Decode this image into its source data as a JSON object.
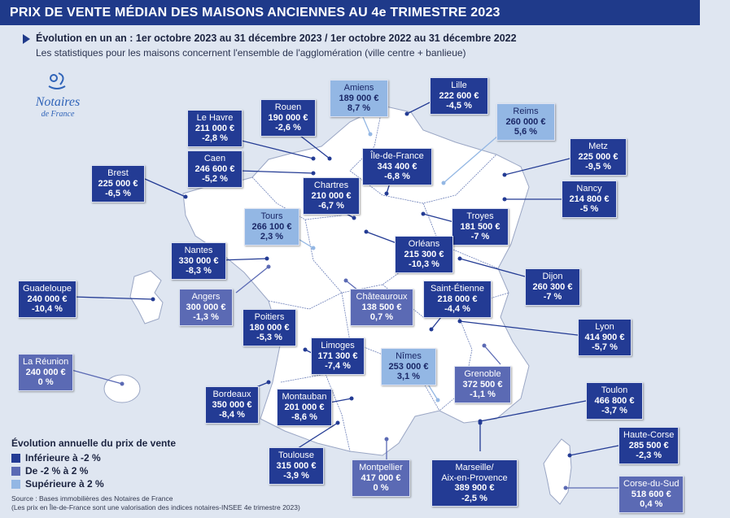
{
  "title": "PRIX DE VENTE MÉDIAN DES MAISONS ANCIENNES AU 4e TRIMESTRE 2023",
  "subtitle": "Évolution en un an : 1er octobre 2023 au 31 décembre 2023 / 1er octobre 2022 au 31 décembre 2022",
  "subtitle2": "Les statistiques pour les maisons concernent l'ensemble de l'agglomération (ville centre + banlieue)",
  "logo": {
    "line1": "Notaires",
    "line2": "de France"
  },
  "legend": {
    "title": "Évolution annuelle du prix de vente",
    "items": [
      {
        "label": "Inférieure à -2 %",
        "color": "#233b94"
      },
      {
        "label": "De -2 % à 2 %",
        "color": "#5b6ab4"
      },
      {
        "label": "Supérieure à 2 %",
        "color": "#93b7e4"
      }
    ]
  },
  "source": {
    "line1": "Source : Bases immobilières des Notaires de France",
    "line2": "(Les prix en Île-de-France sont une valorisation des indices notaires-INSEE 4e trimestre 2023)"
  },
  "cities": [
    {
      "name": "Amiens",
      "price": "189 000 €",
      "change": "8,7 %",
      "level": "light"
    },
    {
      "name": "Lille",
      "price": "222 600 €",
      "change": "-4,5 %",
      "level": "dark"
    },
    {
      "name": "Reims",
      "price": "260 000 €",
      "change": "5,6 %",
      "level": "light"
    },
    {
      "name": "Le Havre",
      "price": "211 000 €",
      "change": "-2,8 %",
      "level": "dark"
    },
    {
      "name": "Rouen",
      "price": "190 000 €",
      "change": "-2,6 %",
      "level": "dark"
    },
    {
      "name": "Caen",
      "price": "246 600 €",
      "change": "-5,2 %",
      "level": "dark"
    },
    {
      "name": "Île-de-France",
      "price": "343 400 €",
      "change": "-6,8 %",
      "level": "dark"
    },
    {
      "name": "Metz",
      "price": "225 000 €",
      "change": "-9,5 %",
      "level": "dark"
    },
    {
      "name": "Brest",
      "price": "225 000 €",
      "change": "-6,5 %",
      "level": "dark"
    },
    {
      "name": "Chartres",
      "price": "210 000 €",
      "change": "-6,7 %",
      "level": "dark"
    },
    {
      "name": "Nancy",
      "price": "214 800 €",
      "change": "-5 %",
      "level": "dark"
    },
    {
      "name": "Tours",
      "price": "266 100 €",
      "change": "2,3 %",
      "level": "light"
    },
    {
      "name": "Troyes",
      "price": "181 500 €",
      "change": "-7 %",
      "level": "dark"
    },
    {
      "name": "Orléans",
      "price": "215 300 €",
      "change": "-10,3 %",
      "level": "dark"
    },
    {
      "name": "Nantes",
      "price": "330 000 €",
      "change": "-8,3 %",
      "level": "dark"
    },
    {
      "name": "Dijon",
      "price": "260 300 €",
      "change": "-7 %",
      "level": "dark"
    },
    {
      "name": "Angers",
      "price": "300 000 €",
      "change": "-1,3 %",
      "level": "mid"
    },
    {
      "name": "Châteauroux",
      "price": "138 500 €",
      "change": "0,7 %",
      "level": "mid"
    },
    {
      "name": "Saint-Étienne",
      "price": "218 000 €",
      "change": "-4,4 %",
      "level": "dark"
    },
    {
      "name": "Guadeloupe",
      "price": "240 000 €",
      "change": "-10,4 %",
      "level": "dark"
    },
    {
      "name": "Poitiers",
      "price": "180 000 €",
      "change": "-5,3 %",
      "level": "dark"
    },
    {
      "name": "Lyon",
      "price": "414 900 €",
      "change": "-5,7 %",
      "level": "dark"
    },
    {
      "name": "Limoges",
      "price": "171 300 €",
      "change": "-7,4 %",
      "level": "dark"
    },
    {
      "name": "Nîmes",
      "price": "253 000 €",
      "change": "3,1 %",
      "level": "light"
    },
    {
      "name": "La Réunion",
      "price": "240 000 €",
      "change": "0 %",
      "level": "mid"
    },
    {
      "name": "Grenoble",
      "price": "372 500 €",
      "change": "-1,1 %",
      "level": "mid"
    },
    {
      "name": "Bordeaux",
      "price": "350 000 €",
      "change": "-8,4 %",
      "level": "dark"
    },
    {
      "name": "Montauban",
      "price": "201 000 €",
      "change": "-8,6 %",
      "level": "dark"
    },
    {
      "name": "Toulon",
      "price": "466 800 €",
      "change": "-3,7 %",
      "level": "dark"
    },
    {
      "name": "Haute-Corse",
      "price": "285 500 €",
      "change": "-2,3 %",
      "level": "dark"
    },
    {
      "name": "Toulouse",
      "price": "315 000 €",
      "change": "-3,9 %",
      "level": "dark"
    },
    {
      "name": "Montpellier",
      "price": "417 000 €",
      "change": "0 %",
      "level": "mid"
    },
    {
      "name": "Marseille/ Aix-en-Provence",
      "price": "389 900 €",
      "change": "-2,5 %",
      "level": "dark"
    },
    {
      "name": "Corse-du-Sud",
      "price": "518 600 €",
      "change": "0,4 %",
      "level": "mid"
    }
  ]
}
